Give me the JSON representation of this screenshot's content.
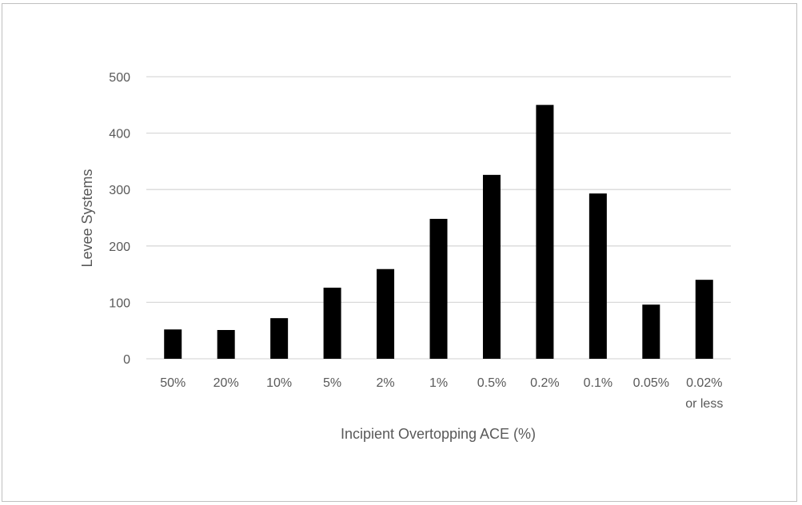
{
  "chart_data": {
    "type": "bar",
    "title": "",
    "xlabel": "Incipient Overtopping ACE (%)",
    "ylabel": "Levee Systems",
    "categories": [
      [
        "50%"
      ],
      [
        "20%"
      ],
      [
        "10%"
      ],
      [
        "5%"
      ],
      [
        "2%"
      ],
      [
        "1%"
      ],
      [
        "0.5%"
      ],
      [
        "0.2%"
      ],
      [
        "0.1%"
      ],
      [
        "0.05%"
      ],
      [
        "0.02%",
        "or less"
      ]
    ],
    "values": [
      52,
      51,
      72,
      126,
      159,
      248,
      326,
      450,
      293,
      96,
      140
    ],
    "ylim": [
      0,
      500
    ],
    "yticks": [
      0,
      100,
      200,
      300,
      400,
      500
    ],
    "grid": true,
    "legend": "none",
    "bar_color": "#000000",
    "grid_color": "#d9d9d9",
    "text_color": "#595959"
  }
}
